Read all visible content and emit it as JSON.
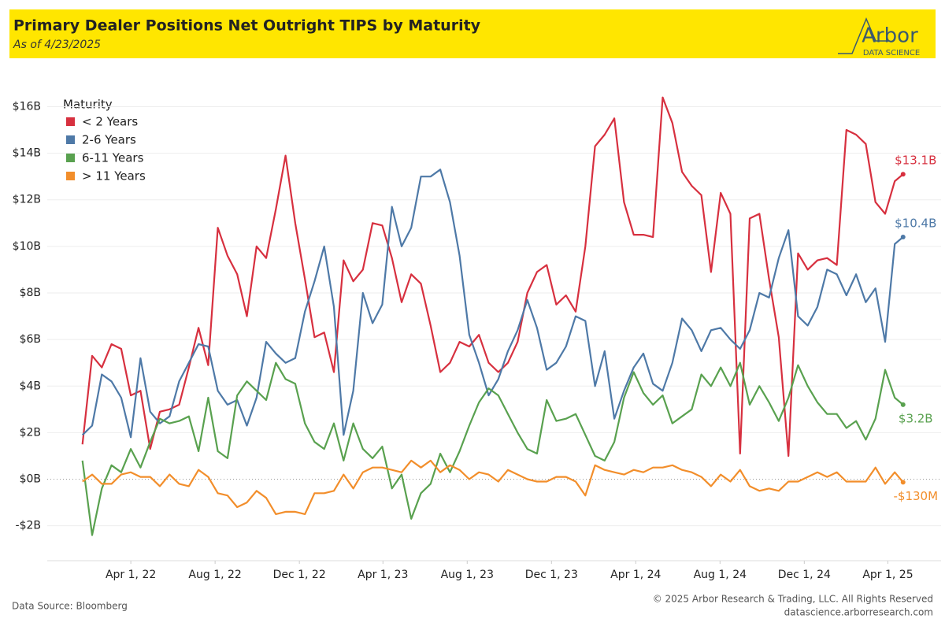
{
  "chart_data": {
    "type": "line",
    "title": "Primary Dealer Positions Net Outright TIPS by Maturity",
    "subtitle": "As of 4/23/2025",
    "logo": {
      "name": "Arbor",
      "tagline": "DATA SCIENCE"
    },
    "legend_title": "Maturity",
    "legend": "top-left",
    "grid": true,
    "source": "Data Source: Bloomberg",
    "copyright": "© 2025 Arbor Research & Trading, LLC. All Rights Reserved",
    "website": "datascience.arborresearch.com",
    "xlim": [
      "2021-12-01",
      "2025-06-17"
    ],
    "xticks": [
      {
        "value": "2022-04-01",
        "label": "Apr 1, 22"
      },
      {
        "value": "2022-08-01",
        "label": "Aug 1, 22"
      },
      {
        "value": "2022-12-01",
        "label": "Dec 1, 22"
      },
      {
        "value": "2023-04-01",
        "label": "Apr 1, 23"
      },
      {
        "value": "2023-08-01",
        "label": "Aug 1, 23"
      },
      {
        "value": "2023-12-01",
        "label": "Dec 1, 23"
      },
      {
        "value": "2024-04-01",
        "label": "Apr 1, 24"
      },
      {
        "value": "2024-08-01",
        "label": "Aug 1, 24"
      },
      {
        "value": "2024-12-01",
        "label": "Dec 1, 24"
      },
      {
        "value": "2025-04-01",
        "label": "Apr 1, 25"
      }
    ],
    "ylim": [
      -3.5,
      17.2
    ],
    "yticks": [
      {
        "value": -2,
        "label": "-$2B"
      },
      {
        "value": 0,
        "label": "$0B"
      },
      {
        "value": 2,
        "label": "$2B"
      },
      {
        "value": 4,
        "label": "$4B"
      },
      {
        "value": 6,
        "label": "$6B"
      },
      {
        "value": 8,
        "label": "$8B"
      },
      {
        "value": 10,
        "label": "$10B"
      },
      {
        "value": 12,
        "label": "$12B"
      },
      {
        "value": 14,
        "label": "$14B"
      },
      {
        "value": 16,
        "label": "$16B"
      }
    ],
    "x": [
      "2022-01-21",
      "2022-02-04",
      "2022-02-18",
      "2022-03-04",
      "2022-03-18",
      "2022-04-01",
      "2022-04-15",
      "2022-04-29",
      "2022-05-13",
      "2022-05-27",
      "2022-06-10",
      "2022-06-24",
      "2022-07-08",
      "2022-07-22",
      "2022-08-05",
      "2022-08-19",
      "2022-09-02",
      "2022-09-16",
      "2022-09-30",
      "2022-10-14",
      "2022-10-28",
      "2022-11-11",
      "2022-11-25",
      "2022-12-09",
      "2022-12-23",
      "2023-01-06",
      "2023-01-20",
      "2023-02-03",
      "2023-02-17",
      "2023-03-03",
      "2023-03-17",
      "2023-03-31",
      "2023-04-14",
      "2023-04-28",
      "2023-05-12",
      "2023-05-26",
      "2023-06-09",
      "2023-06-23",
      "2023-07-07",
      "2023-07-21",
      "2023-08-04",
      "2023-08-18",
      "2023-09-01",
      "2023-09-15",
      "2023-09-29",
      "2023-10-13",
      "2023-10-27",
      "2023-11-10",
      "2023-11-24",
      "2023-12-08",
      "2023-12-22",
      "2024-01-05",
      "2024-01-19",
      "2024-02-02",
      "2024-02-16",
      "2024-03-01",
      "2024-03-15",
      "2024-03-29",
      "2024-04-12",
      "2024-04-26",
      "2024-05-10",
      "2024-05-24",
      "2024-06-07",
      "2024-06-21",
      "2024-07-05",
      "2024-07-19",
      "2024-08-02",
      "2024-08-16",
      "2024-08-30",
      "2024-09-13",
      "2024-09-27",
      "2024-10-11",
      "2024-10-25",
      "2024-11-08",
      "2024-11-22",
      "2024-12-06",
      "2024-12-20",
      "2025-01-03",
      "2025-01-17",
      "2025-01-31",
      "2025-02-14",
      "2025-02-28",
      "2025-03-14",
      "2025-03-28",
      "2025-04-11",
      "2025-04-23"
    ],
    "series": [
      {
        "name": "< 2 Years",
        "color": "#d7303f",
        "values": [
          1.5,
          5.3,
          4.8,
          5.8,
          5.6,
          3.6,
          3.8,
          1.3,
          2.9,
          3.0,
          3.2,
          4.8,
          6.5,
          4.9,
          10.8,
          9.6,
          8.8,
          7.0,
          10.0,
          9.5,
          11.6,
          13.9,
          11.0,
          8.6,
          6.1,
          6.3,
          4.6,
          9.4,
          8.5,
          9.0,
          11.0,
          10.9,
          9.5,
          7.6,
          8.8,
          8.4,
          6.6,
          4.6,
          5.0,
          5.9,
          5.7,
          6.2,
          5.0,
          4.6,
          5.0,
          5.9,
          8.0,
          8.9,
          9.2,
          7.5,
          7.9,
          7.2,
          10.0,
          14.3,
          14.8,
          15.5,
          11.9,
          10.5,
          10.5,
          10.4,
          16.4,
          15.3,
          13.2,
          12.6,
          12.2,
          8.9,
          12.3,
          11.4,
          1.1,
          11.2,
          11.4,
          8.6,
          6.1,
          1.0,
          9.7,
          9.0,
          9.4,
          9.5,
          9.2,
          15.0,
          14.8,
          14.4,
          11.9,
          11.4,
          12.8,
          13.1
        ],
        "value_labels": [
          null,
          null,
          null,
          null,
          null,
          null,
          null,
          null,
          null,
          null,
          null,
          null,
          null,
          null,
          null,
          null,
          null,
          null,
          null,
          null,
          null,
          null,
          null,
          null,
          null,
          null,
          null,
          null,
          null,
          null,
          null,
          null,
          null,
          null,
          null,
          null,
          null,
          null,
          null,
          null,
          null,
          null,
          null,
          null,
          null,
          null,
          null,
          null,
          null,
          null,
          null,
          null,
          null,
          null,
          null,
          null,
          null,
          null,
          null,
          null,
          null,
          null,
          null,
          null,
          null,
          null,
          null,
          null,
          null,
          null,
          null,
          null,
          null,
          null,
          null,
          null,
          null,
          null,
          null,
          null,
          null,
          null,
          null,
          null,
          null,
          "$13.1B"
        ]
      },
      {
        "name": "2-6 Years",
        "color": "#4e79a7",
        "values": [
          1.9,
          2.3,
          4.5,
          4.2,
          3.5,
          1.8,
          5.2,
          2.9,
          2.4,
          2.7,
          4.2,
          5.0,
          5.8,
          5.7,
          3.8,
          3.2,
          3.4,
          2.3,
          3.5,
          5.9,
          5.4,
          5.0,
          5.2,
          7.2,
          8.5,
          10.0,
          7.4,
          1.9,
          3.8,
          8.0,
          6.7,
          7.5,
          11.7,
          10.0,
          10.8,
          13.0,
          13.0,
          13.3,
          11.9,
          9.6,
          6.2,
          5.0,
          3.6,
          4.3,
          5.5,
          6.4,
          7.7,
          6.5,
          4.7,
          5.0,
          5.7,
          7.0,
          6.8,
          4.0,
          5.5,
          2.6,
          3.8,
          4.8,
          5.4,
          4.1,
          3.8,
          5.0,
          6.9,
          6.4,
          5.5,
          6.4,
          6.5,
          6.0,
          5.6,
          6.4,
          8.0,
          7.8,
          9.5,
          10.7,
          7.0,
          6.6,
          7.4,
          9.0,
          8.8,
          7.9,
          8.8,
          7.6,
          8.2,
          5.9,
          10.1,
          10.4
        ],
        "value_labels": [
          null,
          null,
          null,
          null,
          null,
          null,
          null,
          null,
          null,
          null,
          null,
          null,
          null,
          null,
          null,
          null,
          null,
          null,
          null,
          null,
          null,
          null,
          null,
          null,
          null,
          null,
          null,
          null,
          null,
          null,
          null,
          null,
          null,
          null,
          null,
          null,
          null,
          null,
          null,
          null,
          null,
          null,
          null,
          null,
          null,
          null,
          null,
          null,
          null,
          null,
          null,
          null,
          null,
          null,
          null,
          null,
          null,
          null,
          null,
          null,
          null,
          null,
          null,
          null,
          null,
          null,
          null,
          null,
          null,
          null,
          null,
          null,
          null,
          null,
          null,
          null,
          null,
          null,
          null,
          null,
          null,
          null,
          null,
          null,
          null,
          "$10.4B"
        ]
      },
      {
        "name": "6-11 Years",
        "color": "#59a14f",
        "values": [
          0.8,
          -2.4,
          -0.4,
          0.6,
          0.3,
          1.3,
          0.5,
          1.6,
          2.6,
          2.4,
          2.5,
          2.7,
          1.2,
          3.5,
          1.2,
          0.9,
          3.6,
          4.2,
          3.8,
          3.4,
          5.0,
          4.3,
          4.1,
          2.4,
          1.6,
          1.3,
          2.4,
          0.8,
          2.4,
          1.3,
          0.9,
          1.4,
          -0.4,
          0.2,
          -1.7,
          -0.6,
          -0.2,
          1.1,
          0.3,
          1.2,
          2.3,
          3.3,
          3.9,
          3.6,
          2.8,
          2.0,
          1.3,
          1.1,
          3.4,
          2.5,
          2.6,
          2.8,
          1.9,
          1.0,
          0.8,
          1.6,
          3.5,
          4.6,
          3.7,
          3.2,
          3.6,
          2.4,
          2.7,
          3.0,
          4.5,
          4.0,
          4.8,
          4.0,
          5.0,
          3.2,
          4.0,
          3.3,
          2.5,
          3.5,
          4.9,
          4.0,
          3.3,
          2.8,
          2.8,
          2.2,
          2.5,
          1.7,
          2.6,
          4.7,
          3.5,
          3.2
        ],
        "value_labels": [
          null,
          null,
          null,
          null,
          null,
          null,
          null,
          null,
          null,
          null,
          null,
          null,
          null,
          null,
          null,
          null,
          null,
          null,
          null,
          null,
          null,
          null,
          null,
          null,
          null,
          null,
          null,
          null,
          null,
          null,
          null,
          null,
          null,
          null,
          null,
          null,
          null,
          null,
          null,
          null,
          null,
          null,
          null,
          null,
          null,
          null,
          null,
          null,
          null,
          null,
          null,
          null,
          null,
          null,
          null,
          null,
          null,
          null,
          null,
          null,
          null,
          null,
          null,
          null,
          null,
          null,
          null,
          null,
          null,
          null,
          null,
          null,
          null,
          null,
          null,
          null,
          null,
          null,
          null,
          null,
          null,
          null,
          null,
          null,
          null,
          "$3.2B"
        ]
      },
      {
        "name": "> 11 Years",
        "color": "#f28e2b",
        "values": [
          -0.1,
          0.2,
          -0.2,
          -0.2,
          0.2,
          0.3,
          0.1,
          0.1,
          -0.3,
          0.2,
          -0.2,
          -0.3,
          0.4,
          0.1,
          -0.6,
          -0.7,
          -1.2,
          -1.0,
          -0.5,
          -0.8,
          -1.5,
          -1.4,
          -1.4,
          -1.5,
          -0.6,
          -0.6,
          -0.5,
          0.2,
          -0.4,
          0.3,
          0.5,
          0.5,
          0.4,
          0.3,
          0.8,
          0.5,
          0.8,
          0.3,
          0.6,
          0.4,
          0.0,
          0.3,
          0.2,
          -0.1,
          0.4,
          0.2,
          0.0,
          -0.1,
          -0.1,
          0.1,
          0.1,
          -0.1,
          -0.7,
          0.6,
          0.4,
          0.3,
          0.2,
          0.4,
          0.3,
          0.5,
          0.5,
          0.6,
          0.4,
          0.3,
          0.1,
          -0.3,
          0.2,
          -0.1,
          0.4,
          -0.3,
          -0.5,
          -0.4,
          -0.5,
          -0.1,
          -0.1,
          0.1,
          0.3,
          0.1,
          0.3,
          -0.1,
          -0.1,
          -0.1,
          0.5,
          -0.2,
          0.3,
          -0.13
        ],
        "value_labels": [
          null,
          null,
          null,
          null,
          null,
          null,
          null,
          null,
          null,
          null,
          null,
          null,
          null,
          null,
          null,
          null,
          null,
          null,
          null,
          null,
          null,
          null,
          null,
          null,
          null,
          null,
          null,
          null,
          null,
          null,
          null,
          null,
          null,
          null,
          null,
          null,
          null,
          null,
          null,
          null,
          null,
          null,
          null,
          null,
          null,
          null,
          null,
          null,
          null,
          null,
          null,
          null,
          null,
          null,
          null,
          null,
          null,
          null,
          null,
          null,
          null,
          null,
          null,
          null,
          null,
          null,
          null,
          null,
          null,
          null,
          null,
          null,
          null,
          null,
          null,
          null,
          null,
          null,
          null,
          null,
          null,
          null,
          null,
          null,
          null,
          "-$130M"
        ]
      }
    ]
  }
}
